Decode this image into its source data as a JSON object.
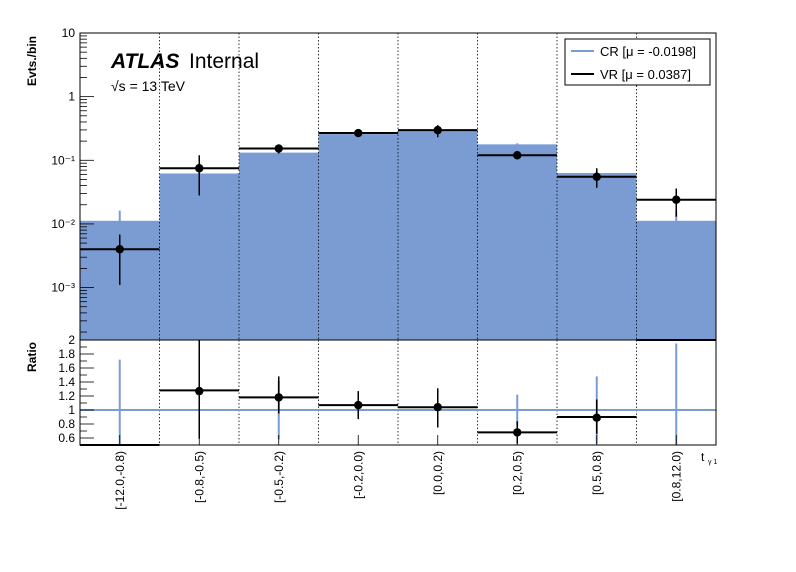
{
  "chart_data": [
    {
      "type": "bar",
      "panel": "main",
      "ylabel": "Evts./bin",
      "yscale": "log",
      "ylim": [
        0.00015,
        10
      ],
      "y_tick_labels": [
        "10⁻³",
        "10⁻²",
        "10⁻¹",
        "1",
        "10"
      ],
      "categories": [
        "[-12.0,-0.8)",
        "[-0.8,-0.5)",
        "[-0.5,-0.2)",
        "[-0.2,0.0)",
        "[0.0,0.2)",
        "[0.2,0.5)",
        "[0.5,0.8)",
        "[0.8,12.0)"
      ],
      "series": [
        {
          "name": "CR [μ = -0.0198]",
          "style": "filled",
          "color": "#7b9cd3",
          "values": [
            0.0112,
            0.062,
            0.132,
            0.258,
            0.292,
            0.178,
            0.063,
            0.0112
          ],
          "errors": [
            0.005,
            0.004,
            0.006,
            0.008,
            0.008,
            0.007,
            0.004,
            0.005
          ]
        },
        {
          "name": "VR [μ = 0.0387]",
          "style": "line+points",
          "color": "#000000",
          "values": [
            0.004,
            0.075,
            0.153,
            0.268,
            0.298,
            0.12,
            0.055,
            0.024
          ],
          "err_low": [
            0.0029,
            0.047,
            0.025,
            0.022,
            0.068,
            0.016,
            0.018,
            0.011
          ],
          "err_high": [
            0.0028,
            0.045,
            0.025,
            0.022,
            0.058,
            0.016,
            0.02,
            0.012
          ]
        }
      ],
      "legend_position": "top-right",
      "grid": "vertical dotted at bin edges",
      "annotation": {
        "experiment": "ATLAS",
        "status": "Internal",
        "energy": "√s = 13 TeV"
      }
    },
    {
      "type": "bar",
      "panel": "ratio",
      "ylabel": "Ratio",
      "xlabel": "t",
      "xlabel_sub": "γ 1",
      "ylim": [
        0.5,
        2.0
      ],
      "y_ticks": [
        0.6,
        0.8,
        1,
        1.2,
        1.4,
        1.6,
        1.8,
        2
      ],
      "y_tick_labels": [
        "0.6",
        "0.8",
        "1",
        "1.2",
        "1.4",
        "1.6",
        "1.8",
        "2"
      ],
      "categories": [
        "[-12.0,-0.8)",
        "[-0.8,-0.5)",
        "[-0.5,-0.2)",
        "[-0.2,0.0)",
        "[0.0,0.2)",
        "[0.2,0.5)",
        "[0.5,0.8)",
        "[0.8,12.0)"
      ],
      "reference_line": 1,
      "cr_error_band_half_height": [
        0.72,
        0.0,
        0.42,
        0.0,
        0.0,
        0.22,
        0.48,
        0.95
      ],
      "values": [
        0.5,
        1.28,
        1.18,
        1.07,
        1.04,
        0.68,
        0.9,
        2.0
      ],
      "markers": [
        null,
        1.27,
        1.18,
        1.07,
        1.04,
        0.68,
        0.89,
        null
      ],
      "err_low": [
        null,
        0.68,
        0.23,
        0.2,
        0.29,
        0.16,
        0.23,
        null
      ],
      "err_high": [
        null,
        0.73,
        0.3,
        0.2,
        0.27,
        0.16,
        0.26,
        null
      ]
    }
  ]
}
